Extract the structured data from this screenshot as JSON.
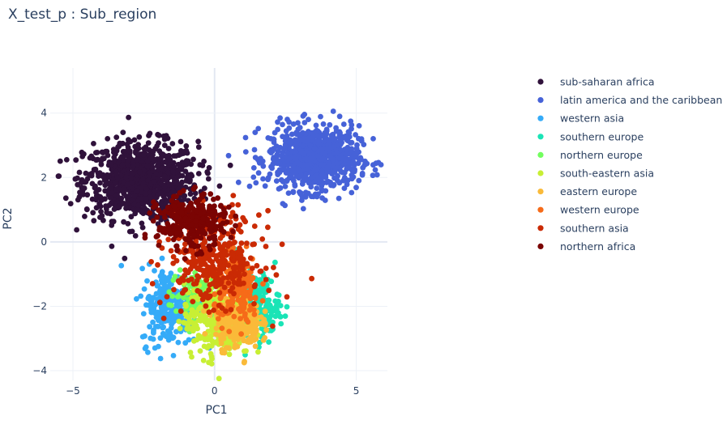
{
  "chart_data": {
    "type": "scatter",
    "title": "X_test_p : Sub_region",
    "xlabel": "PC1",
    "ylabel": "PC2",
    "xlim": [
      -5.8,
      6.1
    ],
    "ylim": [
      -4.3,
      5.4
    ],
    "xticks": [
      -5,
      0,
      5
    ],
    "xtick_labels": [
      "−5",
      "0",
      "5"
    ],
    "yticks": [
      -4,
      -2,
      0,
      2,
      4
    ],
    "ytick_labels": [
      "−4",
      "−2",
      "0",
      "2",
      "4"
    ],
    "grid": true,
    "legend_position": "top-right",
    "series": [
      {
        "name": "sub-saharan africa",
        "color": "#30123b",
        "center": [
          -2.6,
          1.9
        ],
        "spread": [
          1.0,
          0.6
        ],
        "count": 900
      },
      {
        "name": "latin america and the caribbean",
        "color": "#4662d8",
        "center": [
          3.5,
          2.6
        ],
        "spread": [
          0.8,
          0.5
        ],
        "count": 800
      },
      {
        "name": "western asia",
        "color": "#35abf8",
        "center": [
          -1.6,
          -2.0
        ],
        "spread": [
          0.5,
          0.6
        ],
        "count": 250
      },
      {
        "name": "southern europe",
        "color": "#1ae4b6",
        "center": [
          1.5,
          -2.0
        ],
        "spread": [
          0.4,
          0.5
        ],
        "count": 180
      },
      {
        "name": "northern europe",
        "color": "#72fe5e",
        "center": [
          -0.8,
          -1.6
        ],
        "spread": [
          0.4,
          0.4
        ],
        "count": 90
      },
      {
        "name": "south-eastern asia",
        "color": "#c8ef34",
        "center": [
          0.1,
          -2.4
        ],
        "spread": [
          0.6,
          0.6
        ],
        "count": 300
      },
      {
        "name": "eastern europe",
        "color": "#faba39",
        "center": [
          0.8,
          -2.5
        ],
        "spread": [
          0.4,
          0.4
        ],
        "count": 250
      },
      {
        "name": "western europe",
        "color": "#f66b19",
        "center": [
          0.8,
          -1.5
        ],
        "spread": [
          0.4,
          0.5
        ],
        "count": 200
      },
      {
        "name": "southern asia",
        "color": "#ca2a04",
        "center": [
          0.0,
          -0.5
        ],
        "spread": [
          0.8,
          0.7
        ],
        "count": 350
      },
      {
        "name": "northern africa",
        "color": "#7a0403",
        "center": [
          -0.8,
          0.6
        ],
        "spread": [
          0.6,
          0.4
        ],
        "count": 300
      }
    ]
  }
}
